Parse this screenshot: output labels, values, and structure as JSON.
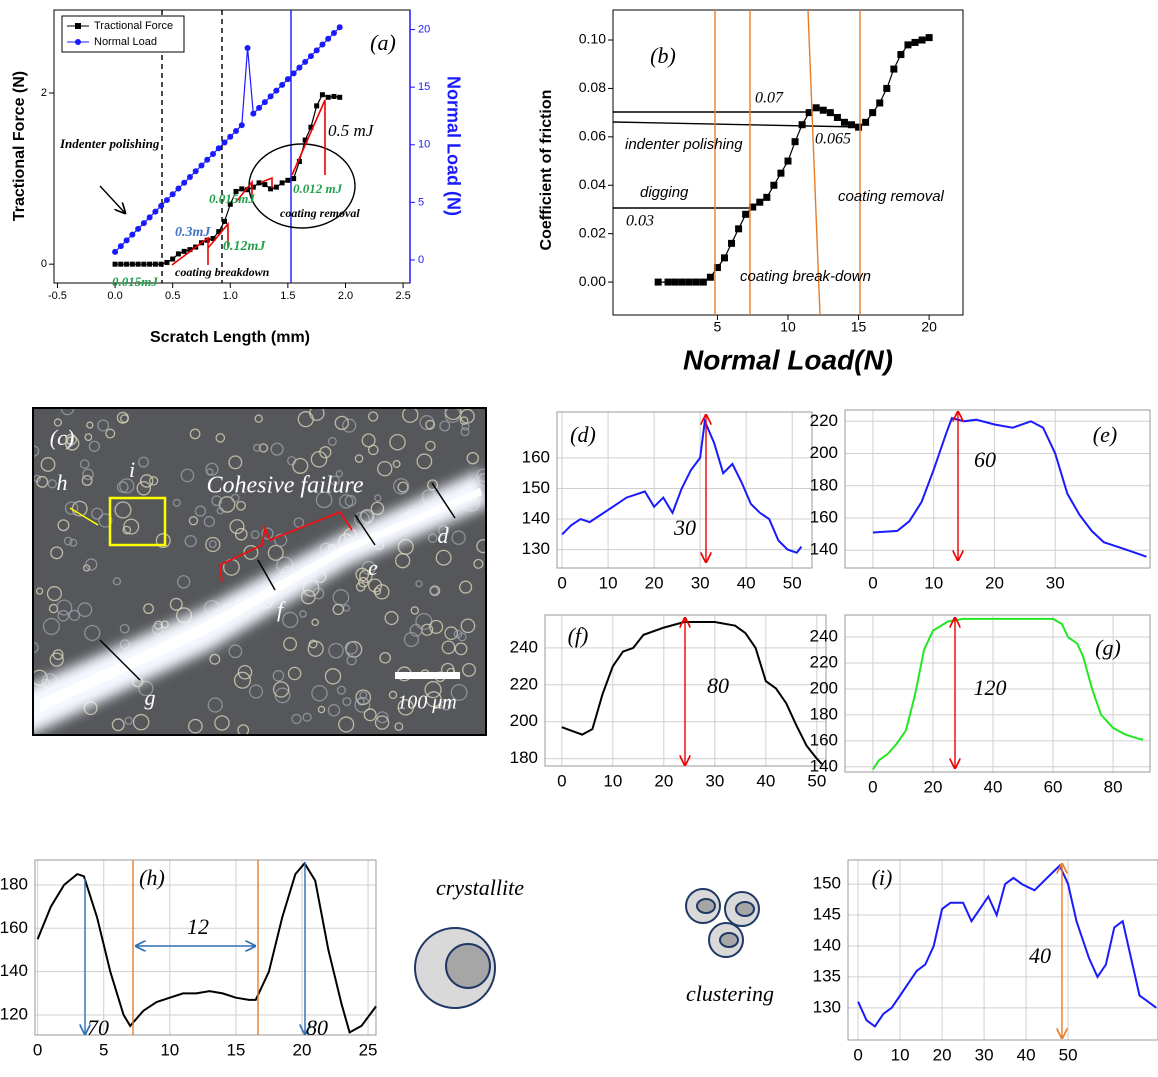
{
  "chart_data": [
    {
      "type": "line",
      "xlabel": "Scratch Length (mm)",
      "ylabel": "Tractional Force (N)",
      "y2label": "Normal Load (N)",
      "xlim": [
        -0.53,
        2.56
      ],
      "xticks": [
        -0.5,
        {
          "value": 0,
          "label": "0.0"
        },
        0.5,
        {
          "value": 1,
          "label": "1.0"
        },
        1.5,
        {
          "value": 2,
          "label": "2.0"
        },
        2.5
      ],
      "ylim": [
        -0.22,
        2.97
      ],
      "yticks": [
        0,
        2
      ],
      "y2lim": [
        -2,
        21.7
      ],
      "y2ticks": [
        0,
        5,
        10,
        15,
        20
      ],
      "legend": "upper left",
      "x": [
        0,
        0.05,
        0.1,
        0.15,
        0.2,
        0.25,
        0.3,
        0.35,
        0.4,
        0.45,
        0.5,
        0.55,
        0.6,
        0.65,
        0.7,
        0.75,
        0.8,
        0.85,
        0.9,
        0.95,
        1.0,
        1.05,
        1.1,
        1.15,
        1.2,
        1.25,
        1.3,
        1.35,
        1.4,
        1.45,
        1.5,
        1.55,
        1.6,
        1.65,
        1.7,
        1.75,
        1.8,
        1.85,
        1.9,
        1.95
      ],
      "series": [
        {
          "name": "Tractional Force",
          "color": "#000000",
          "marker": "square",
          "values": [
            0,
            0,
            0,
            0,
            0,
            0,
            0,
            0,
            0,
            0.02,
            0.06,
            0.12,
            0.15,
            0.17,
            0.2,
            0.25,
            0.28,
            0.3,
            0.38,
            0.5,
            0.7,
            0.85,
            0.88,
            0.87,
            0.9,
            0.95,
            0.93,
            0.88,
            0.9,
            0.95,
            0.98,
            1.0,
            1.2,
            1.45,
            1.6,
            1.85,
            1.98,
            1.95,
            1.96,
            1.95
          ]
        },
        {
          "name": "Normal Load",
          "color": "#1a1aff",
          "marker": "circle",
          "axis": "y2",
          "values": [
            0.7,
            1.2,
            1.7,
            2.2,
            2.7,
            3.2,
            3.7,
            4.2,
            4.7,
            5.2,
            5.7,
            6.2,
            6.7,
            7.2,
            7.7,
            8.2,
            8.7,
            9.2,
            9.7,
            10.2,
            10.7,
            11.2,
            11.7,
            18.4,
            12.7,
            13.2,
            13.7,
            14.2,
            14.7,
            15.2,
            15.7,
            16.2,
            16.7,
            17.2,
            17.7,
            18.2,
            18.7,
            19.2,
            19.7,
            20.2
          ]
        }
      ],
      "annotations": [
        "(a)",
        "Indenter polishing",
        "0.3mJ",
        "0.015mJ",
        "0.015mJ",
        "0.12mJ",
        "coating breakdown",
        "0.012 mJ",
        "coating removal",
        "0.5 mJ"
      ]
    },
    {
      "type": "line",
      "xlabel": "Normal Load(N)",
      "ylabel": "Coefficient of friction",
      "xlim": [
        -2.4,
        22.4
      ],
      "xticks": [
        5,
        10,
        15,
        20
      ],
      "ylim": [
        -0.0136,
        0.1124
      ],
      "yticks": [
        {
          "value": 0,
          "label": "0.00"
        },
        0.02,
        0.04,
        0.06,
        0.08,
        {
          "value": 0.1,
          "label": "0.10"
        }
      ],
      "x": [
        0.8,
        1.5,
        2,
        2.5,
        3,
        3.5,
        4,
        4.5,
        5,
        5.5,
        6,
        6.5,
        7,
        7.5,
        8,
        8.5,
        9,
        9.5,
        10,
        10.5,
        11,
        11.5,
        12,
        12.5,
        13,
        13.5,
        14,
        14.5,
        15,
        15.5,
        16,
        16.5,
        17,
        17.5,
        18,
        18.5,
        19,
        19.5,
        20
      ],
      "series": [
        {
          "color": "#000000",
          "marker": "square",
          "values": [
            0,
            0,
            0,
            0,
            0,
            0,
            0,
            0.002,
            0.006,
            0.01,
            0.016,
            0.022,
            0.028,
            0.031,
            0.033,
            0.035,
            0.04,
            0.045,
            0.05,
            0.058,
            0.065,
            0.07,
            0.072,
            0.071,
            0.07,
            0.068,
            0.066,
            0.065,
            0.064,
            0.066,
            0.07,
            0.074,
            0.08,
            0.088,
            0.094,
            0.098,
            0.099,
            0.1,
            0.101
          ]
        }
      ],
      "annotations": [
        "(b)",
        "0.07",
        "indenter polishing",
        "0.065",
        "digging",
        "0.03",
        "coating removal",
        "coating break-down"
      ]
    },
    {
      "type": "line",
      "grid": true,
      "xlim": [
        -1.1,
        54.3
      ],
      "xticks": [
        0,
        10,
        20,
        30,
        40,
        50
      ],
      "ylim": [
        124,
        175
      ],
      "yticks": [
        130,
        140,
        150,
        160
      ],
      "x": [
        0,
        2,
        4,
        6,
        8,
        10,
        12,
        14,
        16,
        18,
        20,
        22,
        24,
        26,
        28,
        30,
        31,
        33,
        35,
        37,
        39,
        41,
        43,
        45,
        47,
        49,
        51,
        52
      ],
      "series": [
        {
          "color": "#1a1aff",
          "values": [
            135,
            138,
            140,
            139,
            141,
            143,
            145,
            147,
            148,
            149,
            144,
            147,
            142,
            150,
            156,
            160,
            172,
            165,
            155,
            158,
            152,
            145,
            142,
            140,
            133,
            130,
            129,
            131
          ]
        }
      ],
      "annotations": [
        "(d)",
        "30"
      ]
    },
    {
      "type": "line",
      "grid": true,
      "xlim": [
        -4.6,
        45.6
      ],
      "xticks": [
        0,
        10,
        20,
        30
      ],
      "ylim": [
        129,
        227
      ],
      "yticks": [
        140,
        160,
        180,
        200,
        220
      ],
      "x": [
        0,
        4,
        6,
        8,
        10,
        12,
        13,
        15,
        17,
        20,
        23,
        26,
        28,
        30,
        32,
        34,
        36,
        38,
        42,
        45
      ],
      "series": [
        {
          "color": "#1a1aff",
          "values": [
            151,
            152,
            158,
            170,
            190,
            212,
            222,
            220,
            221,
            218,
            216,
            220,
            216,
            200,
            175,
            162,
            152,
            145,
            140,
            136
          ]
        }
      ],
      "annotations": [
        "(e)",
        "60"
      ]
    },
    {
      "type": "line",
      "grid": true,
      "xlim": [
        -3.3,
        51.8
      ],
      "xticks": [
        0,
        10,
        20,
        30,
        40,
        50
      ],
      "ylim": [
        176,
        257.8
      ],
      "yticks": [
        180,
        200,
        220,
        240
      ],
      "x": [
        0,
        2,
        4,
        6,
        8,
        10,
        12,
        14,
        16,
        20,
        24,
        30,
        34,
        36,
        38,
        40,
        42,
        44,
        46,
        48,
        50,
        51
      ],
      "series": [
        {
          "color": "#000000",
          "values": [
            197,
            195,
            193,
            196,
            215,
            230,
            238,
            240,
            247,
            251,
            254,
            254,
            252,
            248,
            240,
            222,
            218,
            210,
            198,
            187,
            180,
            177
          ]
        }
      ],
      "annotations": [
        "(f)",
        "80"
      ]
    },
    {
      "type": "line",
      "grid": true,
      "xlim": [
        -9.3,
        92.3
      ],
      "xticks": [
        0,
        20,
        40,
        60,
        80
      ],
      "ylim": [
        136,
        257
      ],
      "yticks": [
        140,
        160,
        180,
        200,
        220,
        240
      ],
      "x": [
        0,
        2,
        5,
        8,
        11,
        14,
        17,
        20,
        25,
        30,
        60,
        63,
        65,
        68,
        70,
        73,
        76,
        80,
        84,
        88,
        90
      ],
      "series": [
        {
          "color": "#22e822",
          "values": [
            138,
            145,
            150,
            158,
            168,
            195,
            230,
            245,
            252,
            254,
            254,
            250,
            240,
            235,
            225,
            200,
            180,
            170,
            165,
            162,
            161
          ]
        }
      ],
      "annotations": [
        "(g)",
        "120"
      ]
    },
    {
      "type": "line",
      "grid": true,
      "xlim": [
        -0.2,
        25.6
      ],
      "xticks": [
        0,
        5,
        10,
        15,
        20,
        25
      ],
      "ylim": [
        110.8,
        191.5
      ],
      "yticks": [
        120,
        140,
        160,
        180
      ],
      "x": [
        0,
        1,
        2,
        3,
        3.5,
        4.5,
        5.5,
        6.5,
        7,
        8,
        9,
        10,
        11,
        12,
        13,
        14,
        15,
        16,
        16.5,
        17.5,
        18.5,
        19.5,
        20.2,
        21,
        22,
        23,
        23.6,
        24.5,
        25.6
      ],
      "series": [
        {
          "color": "#000000",
          "values": [
            155,
            170,
            180,
            185,
            184,
            165,
            140,
            120,
            115,
            122,
            126,
            128,
            130,
            130,
            131,
            130,
            128,
            127,
            127,
            140,
            165,
            185,
            190,
            182,
            150,
            125,
            112,
            115,
            124
          ]
        }
      ],
      "annotations": [
        "(h)",
        "12",
        "70",
        "80"
      ]
    },
    {
      "type": "line",
      "grid": true,
      "xlim": [
        -2.4,
        71.4
      ],
      "xticks": [
        0,
        10,
        20,
        30,
        40,
        50
      ],
      "ylim": [
        124.8,
        153.9
      ],
      "yticks": [
        130,
        135,
        140,
        145,
        150
      ],
      "x": [
        0,
        2,
        4,
        6,
        8,
        10,
        12,
        14,
        16,
        18,
        20,
        22,
        25,
        27,
        29,
        31,
        33,
        35,
        37,
        39,
        42,
        45,
        48,
        50,
        52,
        55,
        57,
        59,
        61,
        63,
        65,
        67,
        69,
        71
      ],
      "series": [
        {
          "color": "#1a1aff",
          "values": [
            131,
            128,
            127,
            129,
            130,
            132,
            134,
            136,
            137,
            140,
            146,
            147,
            147,
            144,
            146,
            148,
            145,
            150,
            151,
            150,
            149,
            151,
            153,
            150,
            144,
            138,
            135,
            137,
            143,
            144,
            138,
            132,
            131,
            130
          ]
        }
      ],
      "annotations": [
        "(i)",
        "40"
      ]
    }
  ],
  "micrograph": {
    "labels": [
      "(c)",
      "h",
      "i",
      "Cohesive failure",
      "d",
      "e",
      "f",
      "g",
      "100 μm"
    ]
  },
  "diagrams": {
    "crystallite": "crystallite",
    "clustering": "clustering"
  }
}
